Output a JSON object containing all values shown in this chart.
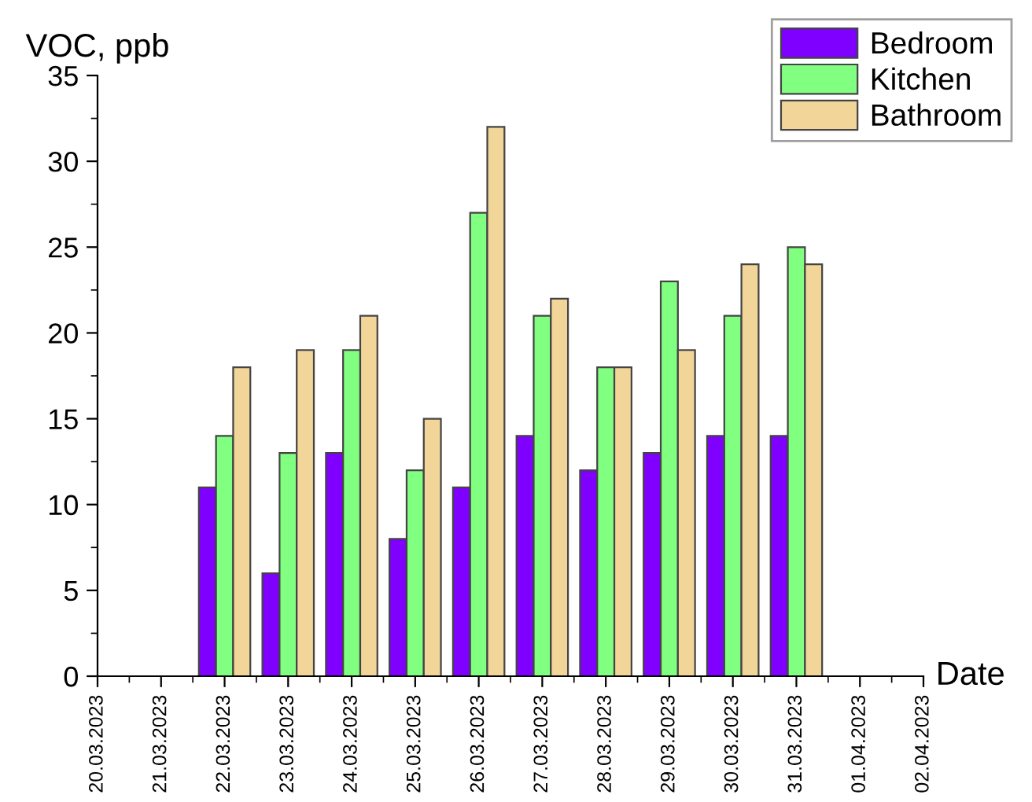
{
  "chart_data": {
    "type": "bar",
    "xlabel": "Date",
    "ylabel": "VOC, ppb",
    "categories": [
      "20.03.2023",
      "21.03.2023",
      "22.03.2023",
      "23.03.2023",
      "24.03.2023",
      "25.03.2023",
      "26.03.2023",
      "27.03.2023",
      "28.03.2023",
      "29.03.2023",
      "30.03.2023",
      "31.03.2023",
      "01.04.2023",
      "02.04.2023"
    ],
    "series": [
      {
        "name": "Bedroom",
        "color": "#7f00ff",
        "values": [
          null,
          null,
          11,
          6,
          13,
          8,
          11,
          14,
          12,
          13,
          14,
          14,
          null,
          null
        ]
      },
      {
        "name": "Kitchen",
        "color": "#80ff80",
        "values": [
          null,
          null,
          14,
          13,
          19,
          12,
          27,
          21,
          18,
          23,
          21,
          25,
          null,
          null
        ]
      },
      {
        "name": "Bathroom",
        "color": "#f2d699",
        "values": [
          null,
          null,
          18,
          19,
          21,
          15,
          32,
          22,
          18,
          19,
          24,
          24,
          null,
          null
        ]
      }
    ],
    "ylim": [
      0,
      35
    ],
    "yticks": [
      0,
      5,
      10,
      15,
      20,
      25,
      30,
      35
    ],
    "grid": false,
    "legend": "top right"
  }
}
